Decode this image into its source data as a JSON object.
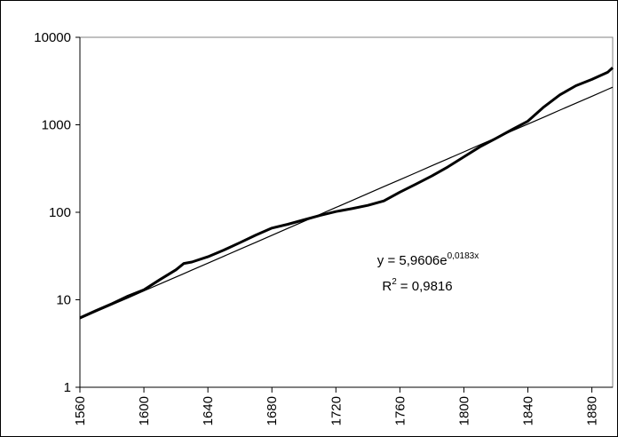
{
  "chart_data": {
    "type": "line",
    "log_y": true,
    "x": [
      1560,
      1570,
      1580,
      1590,
      1600,
      1610,
      1620,
      1625,
      1630,
      1640,
      1650,
      1660,
      1670,
      1680,
      1690,
      1700,
      1710,
      1720,
      1730,
      1740,
      1750,
      1760,
      1770,
      1780,
      1790,
      1800,
      1810,
      1820,
      1830,
      1840,
      1850,
      1860,
      1870,
      1880,
      1890,
      1893
    ],
    "series": [
      {
        "color": "#000000",
        "width": 3,
        "values": [
          6.2,
          7.5,
          9,
          11,
          13,
          17,
          22,
          26,
          27,
          31,
          37,
          45,
          55,
          66,
          73,
          82,
          92,
          102,
          110,
          120,
          135,
          170,
          210,
          260,
          330,
          430,
          560,
          700,
          880,
          1100,
          1600,
          2200,
          2800,
          3300,
          4000,
          4500
        ]
      },
      {
        "color": "#000000",
        "width": 1.2,
        "values": [
          6.07,
          7.29,
          8.75,
          10.51,
          12.63,
          15.16,
          18.2,
          19.9,
          21.85,
          26.2,
          31.5,
          37.8,
          45.4,
          54.6,
          65.5,
          78.7,
          94.5,
          113.4,
          136.2,
          163.6,
          196.4,
          235.8,
          283,
          340,
          408,
          490,
          589,
          707,
          849,
          1020,
          1224,
          1470,
          1765,
          2120,
          2545,
          2690
        ]
      }
    ],
    "xlim": [
      1560,
      1893
    ],
    "xticks": [
      1560,
      1600,
      1640,
      1680,
      1720,
      1760,
      1800,
      1840,
      1880
    ],
    "ylim": [
      1,
      10000
    ],
    "yticks": [
      1,
      10,
      100,
      1000,
      10000
    ],
    "equation": {
      "base": "y = 5,9606e",
      "exponent": "0,0183x"
    },
    "r_squared": {
      "base": "R",
      "exponent": "2",
      "value": "= 0,9816"
    }
  }
}
